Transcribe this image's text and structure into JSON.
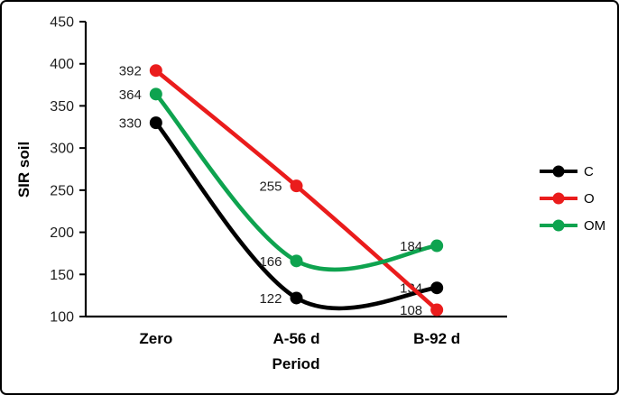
{
  "frame": {
    "background": "#ffffff",
    "border_color": "#000000"
  },
  "chart_data": {
    "type": "line",
    "title": "",
    "xlabel": "Period",
    "ylabel": "SIR soil",
    "categories": [
      "Zero",
      "A-56 d",
      "B-92 d"
    ],
    "series": [
      {
        "name": "C",
        "color": "#000000",
        "values": [
          330,
          122,
          134
        ]
      },
      {
        "name": "O",
        "color": "#ea1c1c",
        "values": [
          392,
          255,
          108
        ]
      },
      {
        "name": "OM",
        "color": "#0ea34f",
        "values": [
          364,
          166,
          184
        ]
      }
    ],
    "ylim": [
      100,
      450
    ],
    "yticks": [
      100,
      150,
      200,
      250,
      300,
      350,
      400,
      450
    ],
    "grid": false,
    "smoothed": true,
    "data_labels": true,
    "marker": "circle",
    "legend_position": "right",
    "axis_color": "#000000",
    "label_color": "#1f1f1f"
  }
}
